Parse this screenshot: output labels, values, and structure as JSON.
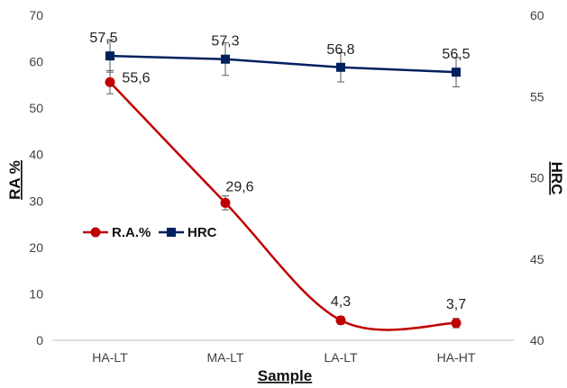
{
  "chart_data": {
    "type": "line",
    "categories": [
      "HA-LT",
      "MA-LT",
      "LA-LT",
      "HA-HT"
    ],
    "xlabel": "Sample",
    "ylabel_left": "RA %",
    "ylabel_right": "HRC",
    "ylim_left": [
      0,
      70
    ],
    "yticks_left": [
      "0",
      "10",
      "20",
      "30",
      "40",
      "50",
      "60",
      "70"
    ],
    "ylim_right": [
      40,
      60
    ],
    "yticks_right": [
      "40",
      "45",
      "50",
      "55",
      "60"
    ],
    "legend_position": "center-left",
    "grid": false,
    "series": [
      {
        "name": "R.A.%",
        "axis": "left",
        "values": [
          55.6,
          29.6,
          4.3,
          3.7
        ],
        "labels": [
          "55,6",
          "29,6",
          "4,3",
          "3,7"
        ],
        "error": [
          2.5,
          1.5,
          0.8,
          1.0
        ],
        "color": "#C00000",
        "marker": "circle",
        "smooth": true
      },
      {
        "name": "HRC",
        "axis": "right",
        "values": [
          57.5,
          57.3,
          56.8,
          56.5
        ],
        "labels": [
          "57,5",
          "57,3",
          "56,8",
          "56,5"
        ],
        "error": [
          1.0,
          1.0,
          0.9,
          0.9
        ],
        "color": "#002060",
        "marker": "square",
        "smooth": false
      }
    ]
  }
}
